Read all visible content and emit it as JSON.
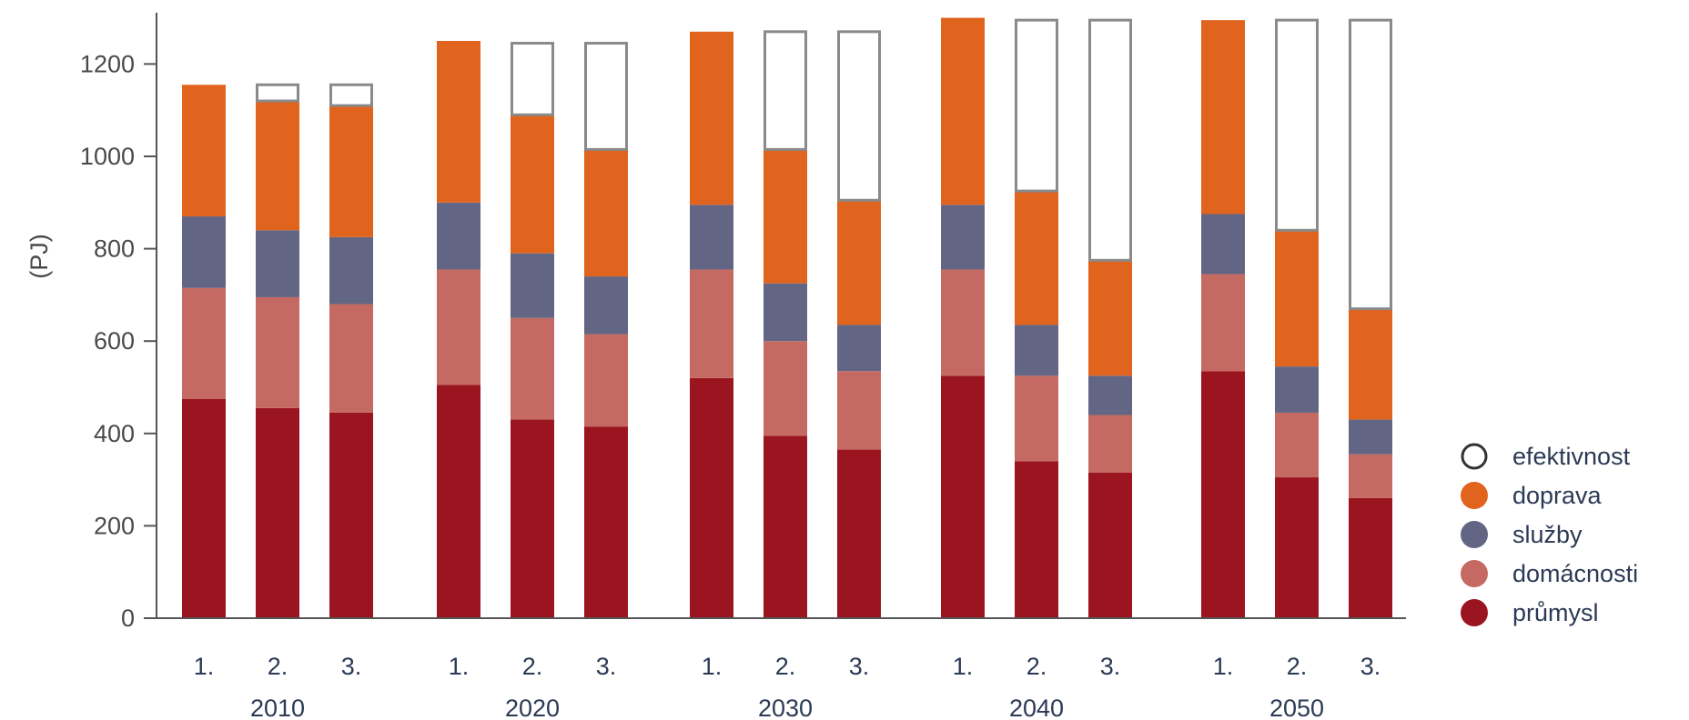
{
  "chart_data": {
    "type": "bar",
    "stacked": true,
    "ylabel": "(PJ)",
    "ylim": [
      0,
      1300
    ],
    "yticks": [
      0,
      200,
      400,
      600,
      800,
      1000,
      1200
    ],
    "groups": [
      "2010",
      "2020",
      "2030",
      "2040",
      "2050"
    ],
    "scenarios": [
      "1.",
      "2.",
      "3."
    ],
    "grid": false,
    "legend_position": "right",
    "colors": {
      "průmysl": "#9a1520",
      "domácnosti": "#c56a62",
      "služby": "#636584",
      "doprava": "#e0631e",
      "efektivnost": "#ffffff"
    },
    "series": [
      {
        "name": "průmysl",
        "values": [
          475,
          455,
          445,
          505,
          430,
          415,
          520,
          395,
          365,
          525,
          340,
          315,
          535,
          305,
          260
        ]
      },
      {
        "name": "domácnosti",
        "values": [
          240,
          240,
          235,
          250,
          220,
          200,
          235,
          205,
          170,
          230,
          185,
          125,
          210,
          140,
          95
        ]
      },
      {
        "name": "služby",
        "values": [
          155,
          145,
          145,
          145,
          140,
          125,
          140,
          125,
          100,
          140,
          110,
          85,
          130,
          100,
          75
        ]
      },
      {
        "name": "doprava",
        "values": [
          285,
          280,
          285,
          350,
          300,
          275,
          375,
          290,
          270,
          405,
          290,
          250,
          420,
          295,
          240
        ]
      },
      {
        "name": "efektivnost",
        "values": [
          0,
          35,
          45,
          0,
          155,
          230,
          0,
          255,
          365,
          0,
          370,
          520,
          0,
          455,
          625
        ]
      }
    ],
    "legend": [
      "efektivnost",
      "doprava",
      "služby",
      "domácnosti",
      "průmysl"
    ]
  }
}
